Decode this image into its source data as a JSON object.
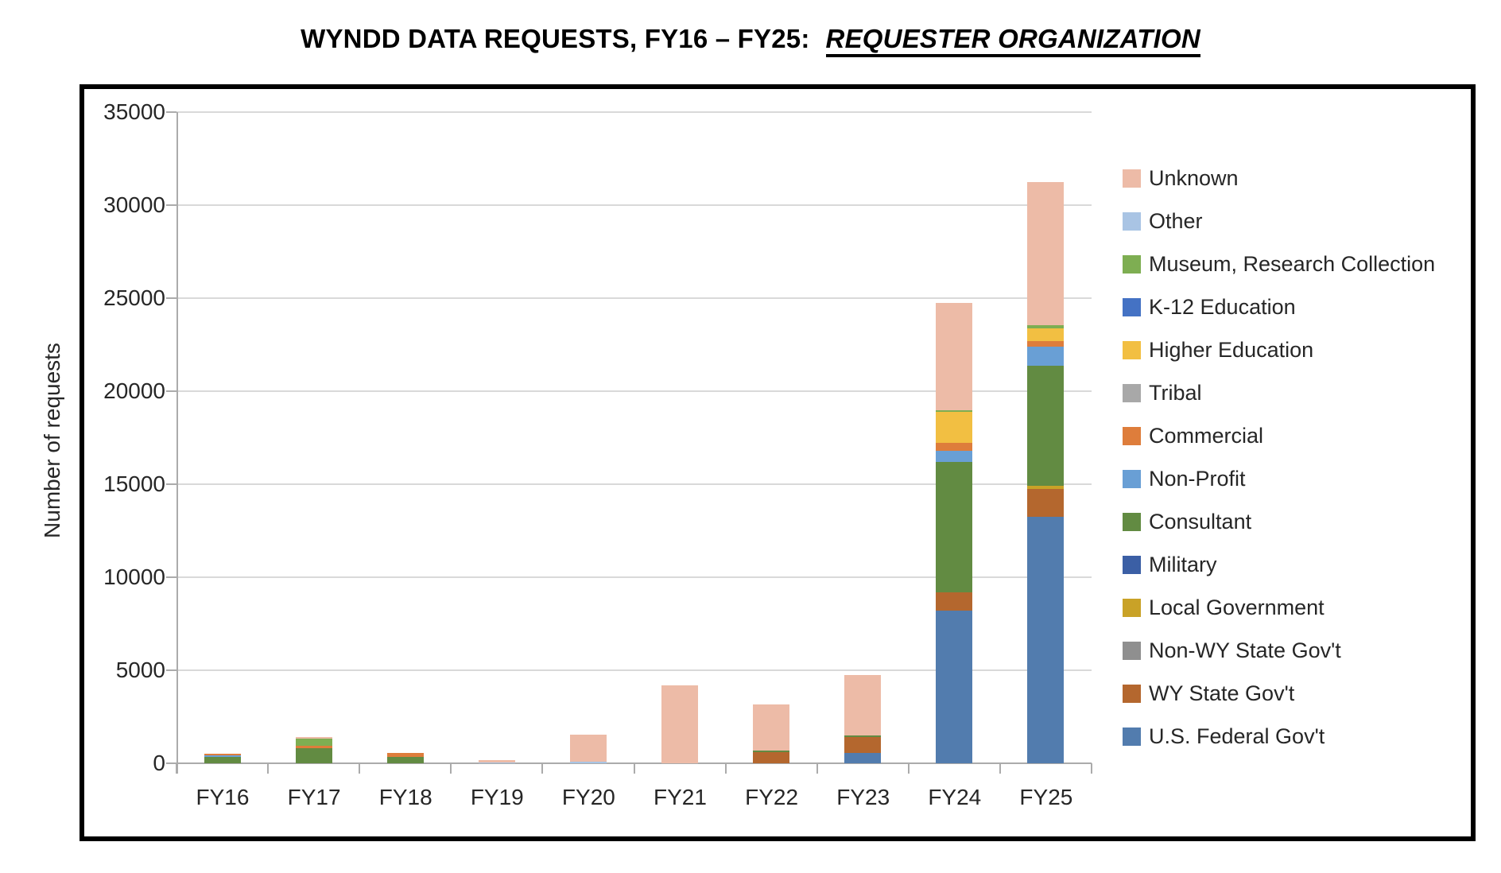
{
  "title": {
    "main": "WYNDD DATA REQUESTS, FY16 – FY25:",
    "emphasis": "REQUESTER ORGANIZATION"
  },
  "chart_data": {
    "type": "bar",
    "stacked": true,
    "title": "WYNDD DATA REQUESTS, FY16 – FY25: REQUESTER ORGANIZATION",
    "xlabel": "",
    "ylabel": "Number of requests",
    "ylim": [
      0,
      35000
    ],
    "yticks": [
      0,
      5000,
      10000,
      15000,
      20000,
      25000,
      30000,
      35000
    ],
    "grid": "horizontal",
    "legend_position": "right",
    "categories": [
      "FY16",
      "FY17",
      "FY18",
      "FY19",
      "FY20",
      "FY21",
      "FY22",
      "FY23",
      "FY24",
      "FY25"
    ],
    "series": [
      {
        "name": "U.S. Federal Gov't",
        "color": "#527CAE",
        "values": [
          0,
          0,
          0,
          0,
          0,
          0,
          0,
          550,
          8220,
          13250
        ]
      },
      {
        "name": "WY State Gov't",
        "color": "#B4672E",
        "values": [
          0,
          0,
          0,
          0,
          0,
          0,
          600,
          855,
          980,
          1500
        ]
      },
      {
        "name": "Non-WY State Gov't",
        "color": "#8F8F8F",
        "values": [
          0,
          0,
          0,
          0,
          0,
          0,
          0,
          0,
          0,
          0
        ]
      },
      {
        "name": "Local Government",
        "color": "#C9A227",
        "values": [
          0,
          0,
          0,
          0,
          0,
          0,
          0,
          0,
          0,
          180
        ]
      },
      {
        "name": "Military",
        "color": "#3B5FA5",
        "values": [
          0,
          0,
          0,
          0,
          0,
          0,
          0,
          0,
          0,
          0
        ]
      },
      {
        "name": "Consultant",
        "color": "#628B42",
        "values": [
          330,
          800,
          340,
          0,
          0,
          0,
          100,
          100,
          6980,
          6445
        ]
      },
      {
        "name": "Non-Profit",
        "color": "#699FD5",
        "values": [
          90,
          0,
          0,
          0,
          0,
          0,
          0,
          0,
          610,
          1020
        ]
      },
      {
        "name": "Commercial",
        "color": "#DE7D3B",
        "values": [
          90,
          140,
          210,
          0,
          0,
          0,
          0,
          0,
          430,
          315
        ]
      },
      {
        "name": "Tribal",
        "color": "#A8A8A8",
        "values": [
          0,
          0,
          0,
          0,
          0,
          0,
          0,
          0,
          0,
          0
        ]
      },
      {
        "name": "Higher Education",
        "color": "#F2BF42",
        "values": [
          0,
          0,
          0,
          0,
          0,
          0,
          0,
          0,
          1670,
          685
        ]
      },
      {
        "name": "K-12 Education",
        "color": "#4472C4",
        "values": [
          0,
          0,
          0,
          0,
          0,
          0,
          0,
          0,
          0,
          0
        ]
      },
      {
        "name": "Museum, Research Collection",
        "color": "#7EAE52",
        "values": [
          0,
          400,
          0,
          0,
          0,
          0,
          0,
          0,
          100,
          170
        ]
      },
      {
        "name": "Other",
        "color": "#A9C4E4",
        "values": [
          0,
          0,
          0,
          60,
          85,
          0,
          0,
          0,
          0,
          0
        ]
      },
      {
        "name": "Unknown",
        "color": "#EDBBA7",
        "values": [
          0,
          70,
          0,
          120,
          1440,
          4180,
          2450,
          3220,
          5750,
          7695
        ]
      }
    ],
    "legend_order_top_to_bottom": [
      "Unknown",
      "Other",
      "Museum, Research Collection",
      "K-12 Education",
      "Higher Education",
      "Tribal",
      "Commercial",
      "Non-Profit",
      "Consultant",
      "Military",
      "Local Government",
      "Non-WY State Gov't",
      "WY State Gov't",
      "U.S. Federal Gov't"
    ]
  },
  "style_colors": {
    "gridline": "#D9D9D9",
    "axis": "#ABABAB",
    "tick_text": "#262626",
    "frame_border": "#000000"
  }
}
